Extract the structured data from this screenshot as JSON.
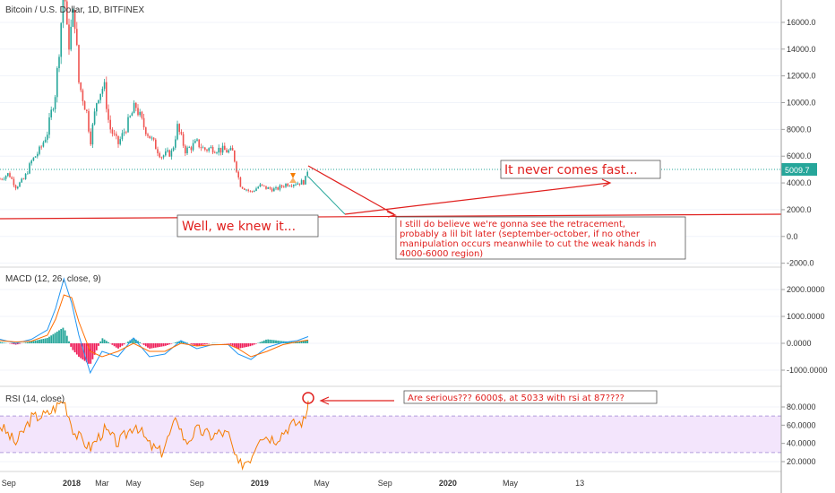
{
  "chart_data": [
    {
      "type": "candlestick",
      "title": "Bitcoin / U.S. Dollar, 1D, BITFINEX",
      "x_ticks": [
        "Sep",
        "2018",
        "Mar",
        "May",
        "Sep",
        "2019",
        "May",
        "Sep",
        "2020",
        "May",
        "13"
      ],
      "y_ticks": [
        "16000.0",
        "14000.0",
        "12000.0",
        "10000.0",
        "8000.0",
        "6000.0",
        "4000.0",
        "2000.0",
        "0.0",
        "-2000.0"
      ],
      "ylim": [
        -2000,
        17500
      ],
      "last_price": "5009.7",
      "series": [
        {
          "name": "",
          "x": [
            "2017-08-15",
            "2017-09-01",
            "2017-09-15",
            "2017-10-01",
            "2017-10-15",
            "2017-11-01",
            "2017-11-15",
            "2017-12-01",
            "2017-12-10",
            "2017-12-17",
            "2017-12-25",
            "2018-01-06",
            "2018-01-15",
            "2018-02-01",
            "2018-02-06",
            "2018-02-20",
            "2018-03-05",
            "2018-03-15",
            "2018-04-01",
            "2018-04-15",
            "2018-05-05",
            "2018-05-20",
            "2018-06-01",
            "2018-06-24",
            "2018-07-15",
            "2018-07-25",
            "2018-08-10",
            "2018-09-01",
            "2018-09-15",
            "2018-10-01",
            "2018-10-15",
            "2018-11-10",
            "2018-11-20",
            "2018-11-25",
            "2018-12-15",
            "2019-01-01",
            "2019-01-15",
            "2019-02-01",
            "2019-02-20",
            "2019-03-15",
            "2019-03-30",
            "2019-04-02",
            "2019-04-05"
          ],
          "close": [
            4300,
            4700,
            3700,
            4300,
            5600,
            6500,
            7800,
            10900,
            15200,
            19000,
            14000,
            17000,
            11500,
            9000,
            7000,
            10500,
            11300,
            8200,
            6900,
            8000,
            9800,
            8300,
            7500,
            6000,
            6300,
            8200,
            6400,
            7000,
            6500,
            6600,
            6500,
            6300,
            4500,
            3800,
            3300,
            3800,
            3600,
            3500,
            3900,
            4000,
            4100,
            4900,
            5009.7
          ]
        }
      ],
      "annotations": [
        "Well, we knew it...",
        "It never comes fast...",
        "I still do believe we're gonna see the retracement, probably a lil bit later (september-october, if no other manipulation occurs meanwhile to cut the weak hands in 4000-6000 region)"
      ],
      "colors": {
        "up": "#26a69a",
        "down": "#ef5350",
        "annotation": "#e0201e"
      }
    },
    {
      "type": "line",
      "title": "MACD (12, 26, close, 9)",
      "y_ticks": [
        "2000.0000",
        "1000.0000",
        "0.0000",
        "-1000.0000"
      ],
      "ylim": [
        -1600,
        2600
      ],
      "x": [
        "2017-08-15",
        "2017-09-15",
        "2017-10-15",
        "2017-11-15",
        "2017-12-01",
        "2017-12-17",
        "2018-01-01",
        "2018-01-15",
        "2018-02-06",
        "2018-03-01",
        "2018-04-01",
        "2018-05-01",
        "2018-06-01",
        "2018-07-01",
        "2018-08-01",
        "2018-09-01",
        "2018-10-01",
        "2018-11-01",
        "2018-11-20",
        "2018-12-15",
        "2019-01-15",
        "2019-02-15",
        "2019-03-15",
        "2019-04-05"
      ],
      "series": [
        {
          "name": "MACD",
          "values": [
            150,
            0,
            150,
            500,
            1300,
            2400,
            1500,
            300,
            -1100,
            -300,
            -500,
            200,
            -500,
            -400,
            100,
            -200,
            -50,
            -50,
            -400,
            -600,
            -150,
            30,
            100,
            250
          ]
        },
        {
          "name": "Signal",
          "values": [
            100,
            50,
            80,
            300,
            900,
            1800,
            1700,
            800,
            -300,
            -500,
            -300,
            0,
            -300,
            -300,
            0,
            -100,
            -60,
            -40,
            -200,
            -500,
            -300,
            -50,
            60,
            120
          ]
        },
        {
          "name": "Histogram",
          "values": [
            50,
            -50,
            70,
            200,
            400,
            600,
            -200,
            -500,
            -800,
            200,
            -200,
            200,
            -200,
            -100,
            100,
            -100,
            10,
            -10,
            -200,
            -100,
            150,
            80,
            40,
            130
          ]
        }
      ],
      "colors": {
        "macd": "#2196f3",
        "signal": "#ff6d00",
        "hist_pos": "#26a69a",
        "hist_neg": "#ef1f5a"
      }
    },
    {
      "type": "line",
      "title": "RSI (14, close)",
      "y_ticks": [
        "80.0000",
        "60.0000",
        "40.0000",
        "20.0000"
      ],
      "ylim": [
        5,
        95
      ],
      "bands": [
        30,
        70
      ],
      "x": [
        "2017-08-15",
        "2017-09-15",
        "2017-10-15",
        "2017-11-15",
        "2017-12-01",
        "2017-12-17",
        "2018-01-06",
        "2018-02-06",
        "2018-03-05",
        "2018-04-01",
        "2018-05-05",
        "2018-06-01",
        "2018-06-24",
        "2018-07-25",
        "2018-08-10",
        "2018-09-01",
        "2018-10-01",
        "2018-10-15",
        "2018-11-01",
        "2018-11-20",
        "2018-12-15",
        "2019-01-01",
        "2019-02-01",
        "2019-03-01",
        "2019-03-30",
        "2019-04-05"
      ],
      "series": [
        {
          "name": "RSI",
          "values": [
            60,
            40,
            68,
            72,
            80,
            88,
            52,
            35,
            55,
            40,
            62,
            38,
            30,
            68,
            40,
            55,
            48,
            52,
            50,
            15,
            25,
            50,
            45,
            60,
            65,
            87
          ]
        }
      ],
      "annotations": [
        "Are serious??? 6000$, at 5033 with rsi at 87????"
      ],
      "colors": {
        "line": "#f57c00",
        "band": "#f3e5fc"
      }
    }
  ]
}
